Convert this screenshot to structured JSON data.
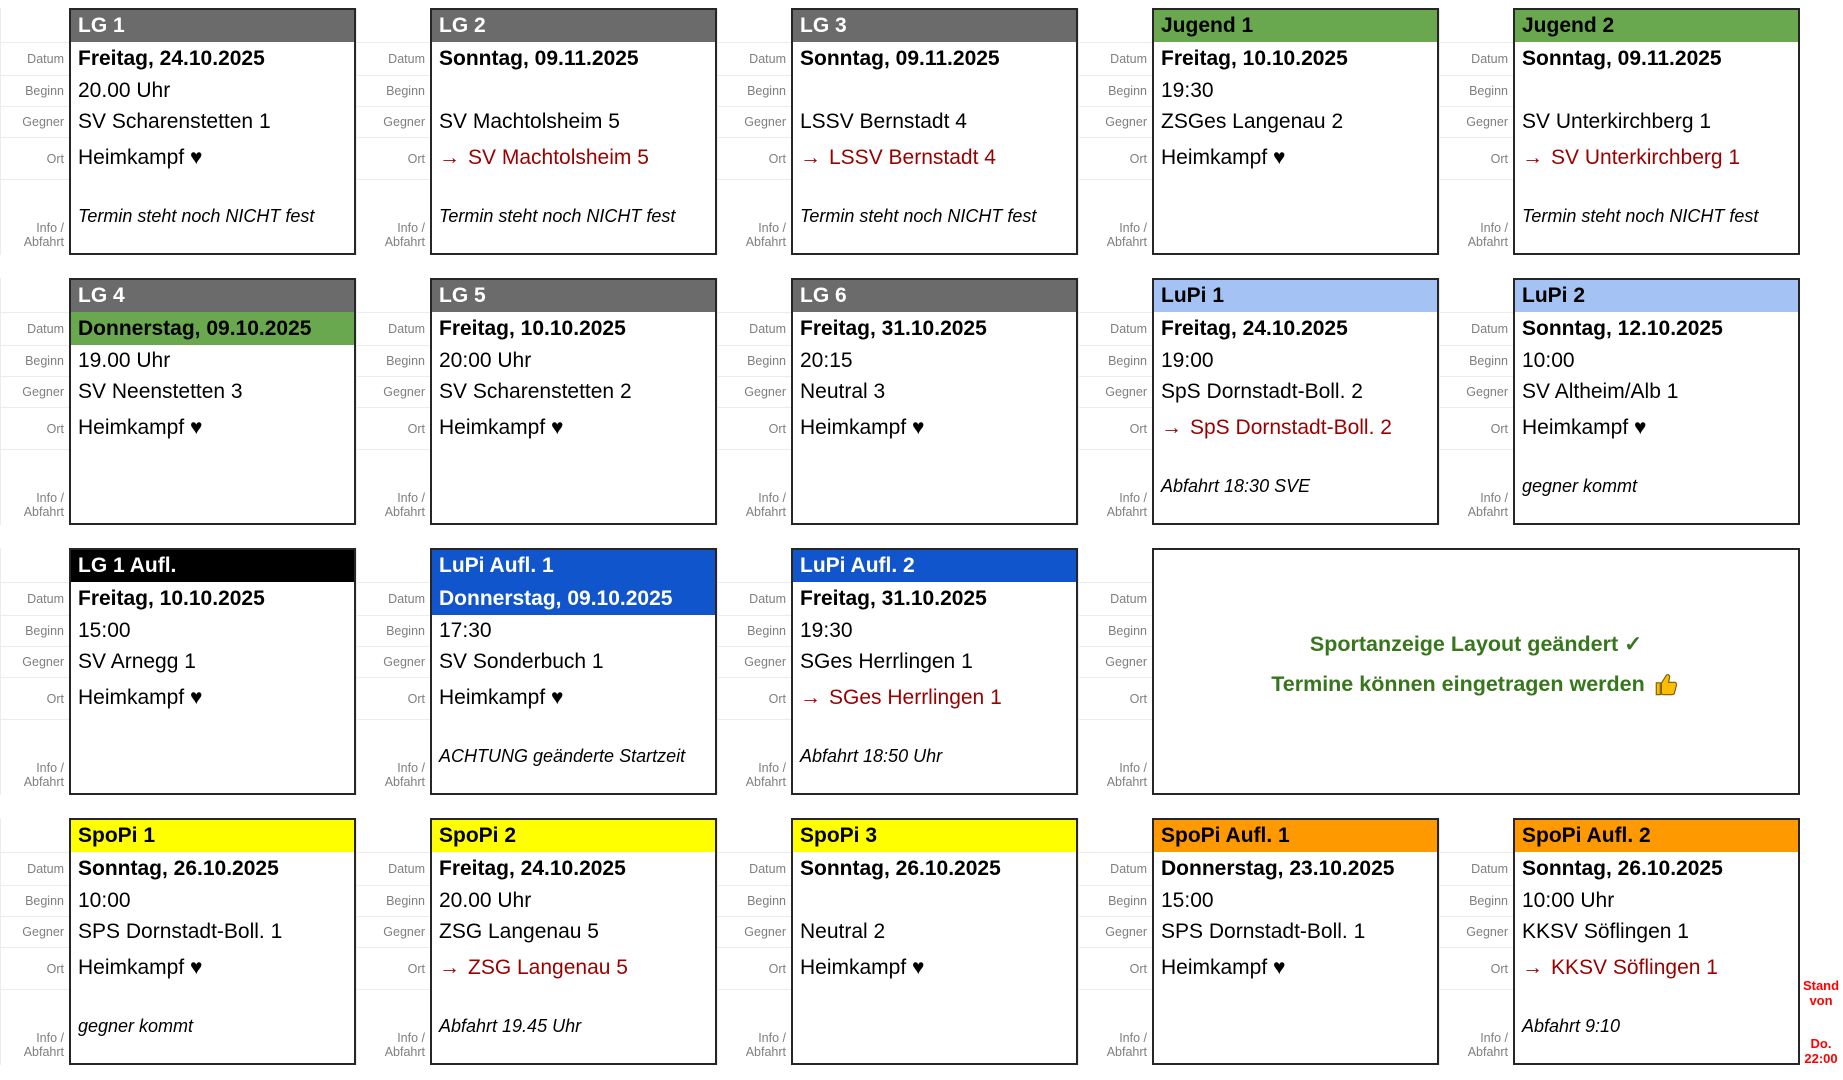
{
  "colors": {
    "schemes": {
      "gray": {
        "bg": "#6b6b6b",
        "fg": "#ffffff"
      },
      "green": {
        "bg": "#6aa84f",
        "fg": "#000000"
      },
      "lightblue": {
        "bg": "#a4c2f4",
        "fg": "#000000"
      },
      "black": {
        "bg": "#000000",
        "fg": "#ffffff"
      },
      "blue": {
        "bg": "#1155cc",
        "fg": "#ffffff"
      },
      "yellow": {
        "bg": "#ffff00",
        "fg": "#000000"
      },
      "orange": {
        "bg": "#ff9900",
        "fg": "#000000"
      }
    },
    "highlights": {
      "green": {
        "bg": "#6aa84f",
        "fg": "#000000"
      },
      "blue": {
        "bg": "#1155cc",
        "fg": "#ffffff"
      }
    },
    "away_red": "#990000",
    "label_gray": "#7f7f7f",
    "message_green": "#38761d",
    "stand_red": "#ff0000",
    "border_dark": "#262626",
    "thumb_yellow": "#fbbc04"
  },
  "labels": {
    "datum": "Datum",
    "beginn": "Beginn",
    "gegner": "Gegner",
    "ort": "Ort",
    "info_line1": "Info /",
    "info_line2": "Abfahrt"
  },
  "icons": {
    "away_arrow": "→",
    "heart": "♥",
    "check": "✓",
    "thumb": "thumbs-up"
  },
  "rows": [
    [
      {
        "title": "LG 1",
        "scheme": "gray",
        "datum": "Freitag, 24.10.2025",
        "beginn": "20.00 Uhr",
        "gegner": "SV Scharenstetten 1",
        "ort": "Heimkampf ♥",
        "away": false,
        "info": "Termin steht noch NICHT fest"
      },
      {
        "title": "LG 2",
        "scheme": "gray",
        "datum": "Sonntag, 09.11.2025",
        "beginn": "",
        "gegner": "SV Machtolsheim 5",
        "ort": "SV Machtolsheim 5",
        "away": true,
        "info": "Termin steht noch NICHT fest"
      },
      {
        "title": "LG 3",
        "scheme": "gray",
        "datum": "Sonntag, 09.11.2025",
        "beginn": "",
        "gegner": "LSSV Bernstadt 4",
        "ort": "LSSV Bernstadt 4",
        "away": true,
        "info": "Termin steht noch NICHT fest"
      },
      {
        "title": "Jugend 1",
        "scheme": "green",
        "datum": "Freitag, 10.10.2025",
        "beginn": "19:30",
        "gegner": "ZSGes Langenau 2",
        "ort": "Heimkampf ♥",
        "away": false,
        "info": ""
      },
      {
        "title": "Jugend 2",
        "scheme": "green",
        "datum": "Sonntag, 09.11.2025",
        "beginn": "",
        "gegner": "SV Unterkirchberg 1",
        "ort": "SV Unterkirchberg 1",
        "away": true,
        "info": "Termin steht noch NICHT fest"
      }
    ],
    [
      {
        "title": "LG 4",
        "scheme": "gray",
        "datum": "Donnerstag, 09.10.2025",
        "datum_scheme": "green",
        "beginn": "19.00 Uhr",
        "gegner": "SV Neenstetten 3",
        "ort": "Heimkampf ♥",
        "away": false,
        "info": ""
      },
      {
        "title": "LG 5",
        "scheme": "gray",
        "datum": "Freitag, 10.10.2025",
        "beginn": "20:00 Uhr",
        "gegner": "SV Scharenstetten 2",
        "ort": "Heimkampf ♥",
        "away": false,
        "info": ""
      },
      {
        "title": "LG 6",
        "scheme": "gray",
        "datum": "Freitag, 31.10.2025",
        "beginn": "20:15",
        "gegner": "Neutral 3",
        "ort": "Heimkampf ♥",
        "away": false,
        "info": ""
      },
      {
        "title": "LuPi 1",
        "scheme": "lightblue",
        "datum": "Freitag, 24.10.2025",
        "beginn": "19:00",
        "gegner": "SpS Dornstadt-Boll. 2",
        "ort": "SpS Dornstadt-Boll. 2",
        "away": true,
        "info": "Abfahrt 18:30 SVE"
      },
      {
        "title": "LuPi 2",
        "scheme": "lightblue",
        "datum": "Sonntag, 12.10.2025",
        "beginn": "10:00",
        "gegner": "SV Altheim/Alb 1",
        "ort": "Heimkampf ♥",
        "away": false,
        "info": "gegner kommt"
      }
    ],
    [
      {
        "title": "LG 1 Aufl.",
        "scheme": "black",
        "datum": "Freitag, 10.10.2025",
        "beginn": "15:00",
        "gegner": "SV Arnegg 1",
        "ort": "Heimkampf ♥",
        "away": false,
        "info": ""
      },
      {
        "title": "LuPi Aufl. 1",
        "scheme": "blue",
        "datum": "Donnerstag, 09.10.2025",
        "datum_scheme": "blue",
        "beginn": "17:30",
        "gegner": "SV Sonderbuch 1",
        "ort": "Heimkampf ♥",
        "away": false,
        "info": "ACHTUNG geänderte Startzeit"
      },
      {
        "title": "LuPi Aufl. 2",
        "scheme": "blue",
        "datum": "Freitag, 31.10.2025",
        "beginn": "19:30",
        "gegner": "SGes Herrlingen 1",
        "ort": "SGes Herrlingen 1",
        "away": true,
        "info": "Abfahrt 18:50 Uhr"
      },
      {
        "type": "message",
        "line1": "Sportanzeige Layout geändert ✓",
        "line2": "Termine können eingetragen werden"
      }
    ],
    [
      {
        "title": "SpoPi 1",
        "scheme": "yellow",
        "datum": "Sonntag, 26.10.2025",
        "beginn": "10:00",
        "gegner": "SPS Dornstadt-Boll. 1",
        "ort": "Heimkampf ♥",
        "away": false,
        "info": "gegner kommt"
      },
      {
        "title": "SpoPi 2",
        "scheme": "yellow",
        "datum": "Freitag, 24.10.2025",
        "beginn": "20.00 Uhr",
        "gegner": "ZSG Langenau 5",
        "ort": "ZSG Langenau 5",
        "away": true,
        "info": "Abfahrt 19.45 Uhr"
      },
      {
        "title": "SpoPi 3",
        "scheme": "yellow",
        "datum": "Sonntag, 26.10.2025",
        "beginn": "",
        "gegner": "Neutral 2",
        "ort": "Heimkampf ♥",
        "away": false,
        "info": ""
      },
      {
        "title": "SpoPi Aufl. 1",
        "scheme": "orange",
        "datum": "Donnerstag, 23.10.2025",
        "beginn": "15:00",
        "gegner": "SPS Dornstadt-Boll. 1",
        "ort": "Heimkampf ♥",
        "away": false,
        "info": ""
      },
      {
        "title": "SpoPi Aufl. 2",
        "scheme": "orange",
        "datum": "Sonntag, 26.10.2025",
        "beginn": "10:00 Uhr",
        "gegner": "KKSV Söflingen 1",
        "ort": "KKSV Söflingen 1",
        "away": true,
        "info": "Abfahrt 9:10"
      }
    ]
  ],
  "stand_note": {
    "lines": [
      "Stand",
      "von",
      "Do.",
      "22:00"
    ]
  }
}
